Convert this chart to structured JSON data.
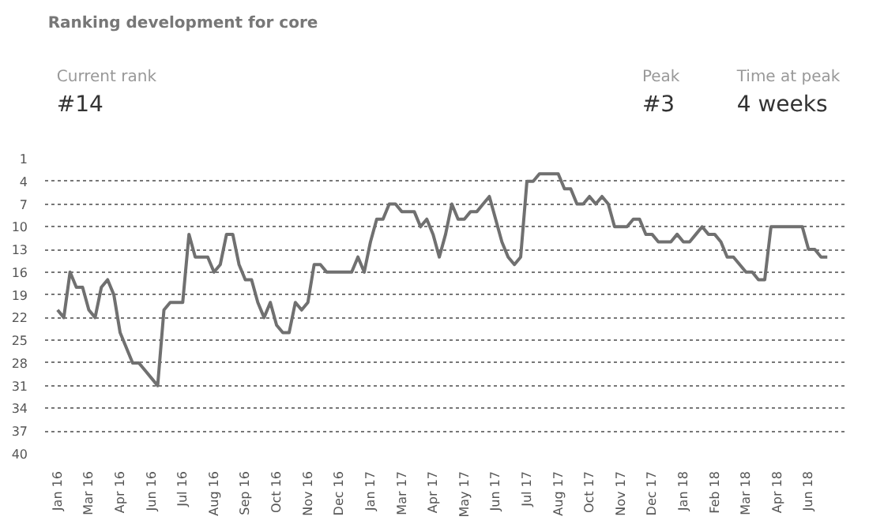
{
  "chart_data": {
    "type": "line",
    "title": "Ranking development for core",
    "annotations": [
      "Current rank",
      "#14",
      "Peak",
      "#3",
      "Time at peak",
      "4 weeks"
    ],
    "categories": [
      "Jan 16",
      null,
      null,
      null,
      null,
      "Mar 16",
      null,
      null,
      null,
      null,
      "Apr 16",
      null,
      null,
      null,
      null,
      "Jun 16",
      null,
      null,
      null,
      null,
      "Jul 16",
      null,
      null,
      null,
      null,
      "Aug 16",
      null,
      null,
      null,
      null,
      "Sep 16",
      null,
      null,
      null,
      null,
      "Oct 16",
      null,
      null,
      null,
      null,
      "Nov 16",
      null,
      null,
      null,
      null,
      "Dec 16",
      null,
      null,
      null,
      null,
      "Jan 17",
      null,
      null,
      null,
      null,
      "Mar 17",
      null,
      null,
      null,
      null,
      "Apr 17",
      null,
      null,
      null,
      null,
      "May 17",
      null,
      null,
      null,
      null,
      "Jun 17",
      null,
      null,
      null,
      null,
      "Jul 17",
      null,
      null,
      null,
      null,
      "Aug 17",
      null,
      null,
      null,
      null,
      "Oct 17",
      null,
      null,
      null,
      null,
      "Nov 17",
      null,
      null,
      null,
      null,
      "Dec 17",
      null,
      null,
      null,
      null,
      "Jan 18",
      null,
      null,
      null,
      null,
      "Feb 18",
      null,
      null,
      null,
      null,
      "Mar 18",
      null,
      null,
      null,
      null,
      "Apr 18",
      null,
      null,
      null,
      null,
      "Jun 18",
      null,
      null,
      null
    ],
    "series": [
      {
        "color": "#707070",
        "values": [
          21,
          22,
          16,
          18,
          18,
          21,
          22,
          18,
          17,
          19,
          24,
          26,
          28,
          28,
          29,
          30,
          31,
          21,
          20,
          20,
          20,
          11,
          14,
          14,
          14,
          16,
          15,
          11,
          11,
          15,
          17,
          17,
          20,
          22,
          20,
          23,
          24,
          24,
          20,
          21,
          20,
          15,
          15,
          16,
          16,
          16,
          16,
          16,
          14,
          16,
          12,
          9,
          9,
          7,
          7,
          8,
          8,
          8,
          10,
          9,
          11,
          14,
          11,
          7,
          9,
          9,
          8,
          8,
          7,
          6,
          9,
          12,
          14,
          15,
          14,
          4,
          4,
          3,
          3,
          3,
          3,
          5,
          5,
          7,
          7,
          6,
          7,
          6,
          7,
          10,
          10,
          10,
          9,
          9,
          11,
          11,
          12,
          12,
          12,
          11,
          12,
          12,
          11,
          10,
          11,
          11,
          12,
          14,
          14,
          15,
          16,
          16,
          17,
          17,
          10,
          10,
          10,
          10,
          10,
          10,
          13,
          13,
          14,
          14
        ]
      }
    ],
    "ylim": [
      40,
      1
    ],
    "yticks": [
      1,
      4,
      7,
      10,
      13,
      16,
      19,
      22,
      25,
      28,
      31,
      34,
      37,
      40
    ],
    "grid": "y"
  }
}
